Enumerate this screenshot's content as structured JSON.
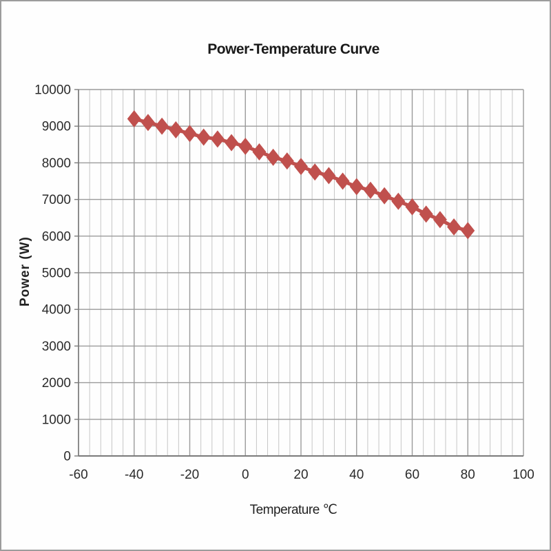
{
  "page": {
    "background": "#fefefe",
    "border_color": "#9c9c9c"
  },
  "chart": {
    "title": "Power-Temperature Curve",
    "x_axis_title": "Temperature ℃",
    "y_axis_title": "Power (W)"
  },
  "chart_data": {
    "type": "line",
    "title": "Power-Temperature Curve",
    "xlabel": "Temperature ℃",
    "ylabel": "Power (W)",
    "x": [
      -40,
      -35,
      -30,
      -25,
      -20,
      -15,
      -10,
      -5,
      0,
      5,
      10,
      15,
      20,
      25,
      30,
      35,
      40,
      45,
      50,
      55,
      60,
      65,
      70,
      75,
      80
    ],
    "values": [
      9200,
      9100,
      9000,
      8900,
      8800,
      8700,
      8650,
      8550,
      8450,
      8300,
      8150,
      8050,
      7900,
      7750,
      7650,
      7500,
      7350,
      7250,
      7100,
      6950,
      6800,
      6600,
      6450,
      6250,
      6150
    ],
    "xlim": [
      -60,
      100
    ],
    "ylim": [
      0,
      10000
    ],
    "x_tick_labels": [
      -60,
      -40,
      -20,
      0,
      20,
      40,
      60,
      80,
      100
    ],
    "y_tick_labels": [
      0,
      1000,
      2000,
      3000,
      4000,
      5000,
      6000,
      7000,
      8000,
      9000,
      10000
    ],
    "x_major_grid_step": 20,
    "x_minor_grid_step": 4,
    "y_grid_step": 1000,
    "grid": true,
    "legend_position": "none",
    "marker": "diamond",
    "series_color": "#c0504d",
    "minor_grid_color": "#c6c6c6",
    "major_grid_color": "#9a9a9a",
    "axis_color": "#7a7a7a",
    "tick_label_color": "#2b2b2b"
  }
}
